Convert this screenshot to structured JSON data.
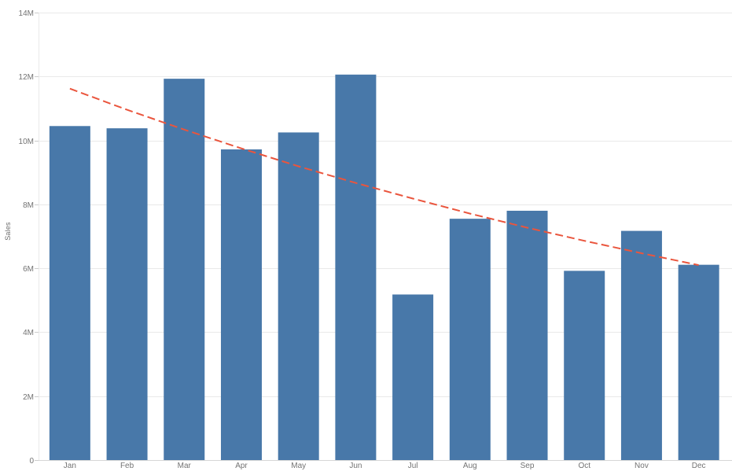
{
  "chart_data": {
    "type": "bar",
    "title": "",
    "xlabel": "",
    "ylabel": "Sales",
    "categories": [
      "Jan",
      "Feb",
      "Mar",
      "Apr",
      "May",
      "Jun",
      "Jul",
      "Aug",
      "Sep",
      "Oct",
      "Nov",
      "Dec"
    ],
    "series": [
      {
        "name": "Sales",
        "unit": "millions",
        "values": [
          10.45,
          10.38,
          11.93,
          9.72,
          10.25,
          12.06,
          5.18,
          7.55,
          7.8,
          5.92,
          7.17,
          6.11
        ]
      }
    ],
    "trend_line": {
      "name": "trend-line",
      "shape": "exponential",
      "style": "dashed",
      "values": [
        11.62,
        10.96,
        10.34,
        9.75,
        9.19,
        8.67,
        8.18,
        7.71,
        7.27,
        6.86,
        6.47,
        6.1
      ]
    },
    "ylim": [
      0,
      14
    ],
    "ytick_step": 2,
    "ytick_labels": [
      "0",
      "2M",
      "4M",
      "6M",
      "8M",
      "10M",
      "12M",
      "14M"
    ],
    "grid": true,
    "legend": false,
    "colors": {
      "bar": "#4878a9",
      "trend": "#ea553d",
      "axis_text": "#737373",
      "gridline": "#e9e9e9",
      "axis_line": "#d6d6d6",
      "tick_mark": "#cccccc",
      "background": "#ffffff"
    }
  }
}
